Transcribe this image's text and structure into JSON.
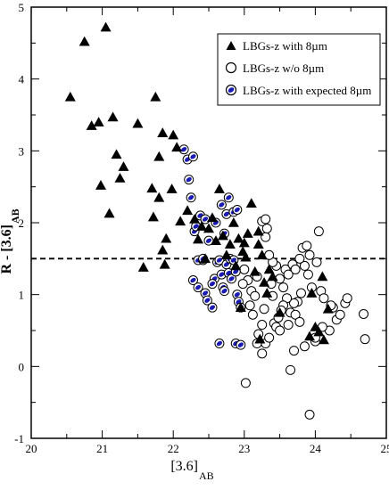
{
  "chart_data": {
    "type": "scatter",
    "xlabel": "[3.6]",
    "xlabel_sub": "AB",
    "ylabel": "R - [3.6]",
    "ylabel_sub": "AB",
    "xlim": [
      20,
      25
    ],
    "ylim": [
      -1,
      5
    ],
    "xticks": [
      "20",
      "21",
      "22",
      "23",
      "24",
      "25"
    ],
    "yticks": [
      "-1",
      "0",
      "1",
      "2",
      "3",
      "4",
      "5"
    ],
    "grid": false,
    "legend_position": "top-right",
    "reference_line": {
      "y": 1.5,
      "style": "dashed"
    },
    "series": [
      {
        "name": "LBGs-z with 8µm",
        "marker": "filled-triangle",
        "color": "#000000",
        "points": [
          [
            20.55,
            3.75
          ],
          [
            20.75,
            4.52
          ],
          [
            21.05,
            4.72
          ],
          [
            20.85,
            3.35
          ],
          [
            20.95,
            3.4
          ],
          [
            21.15,
            3.47
          ],
          [
            20.98,
            2.52
          ],
          [
            21.1,
            2.13
          ],
          [
            21.2,
            2.95
          ],
          [
            21.25,
            2.62
          ],
          [
            21.3,
            2.78
          ],
          [
            21.5,
            3.38
          ],
          [
            21.58,
            1.38
          ],
          [
            21.7,
            2.48
          ],
          [
            21.72,
            2.08
          ],
          [
            21.75,
            3.75
          ],
          [
            21.8,
            2.92
          ],
          [
            21.85,
            1.62
          ],
          [
            21.88,
            1.42
          ],
          [
            21.9,
            1.78
          ],
          [
            21.85,
            3.25
          ],
          [
            21.8,
            2.35
          ],
          [
            22.0,
            3.22
          ],
          [
            22.05,
            3.05
          ],
          [
            21.98,
            2.47
          ],
          [
            22.1,
            2.02
          ],
          [
            22.2,
            2.17
          ],
          [
            22.3,
            2.05
          ],
          [
            22.35,
            1.77
          ],
          [
            22.4,
            1.95
          ],
          [
            22.5,
            1.92
          ],
          [
            22.55,
            2.07
          ],
          [
            22.6,
            1.75
          ],
          [
            22.65,
            2.47
          ],
          [
            22.7,
            1.82
          ],
          [
            22.75,
            1.55
          ],
          [
            22.8,
            1.7
          ],
          [
            22.85,
            2.0
          ],
          [
            22.88,
            1.4
          ],
          [
            22.92,
            1.78
          ],
          [
            22.98,
            1.6
          ],
          [
            23.02,
            1.52
          ],
          [
            23.05,
            1.85
          ],
          [
            23.1,
            2.27
          ],
          [
            23.15,
            1.32
          ],
          [
            23.2,
            1.88
          ],
          [
            23.25,
            1.55
          ],
          [
            23.28,
            1.17
          ],
          [
            23.32,
            1.02
          ],
          [
            23.35,
            1.35
          ],
          [
            23.4,
            1.25
          ],
          [
            23.22,
            0.38
          ],
          [
            22.95,
            0.82
          ],
          [
            23.0,
            1.72
          ],
          [
            23.5,
            0.75
          ],
          [
            23.92,
            0.42
          ],
          [
            24.0,
            0.55
          ],
          [
            24.05,
            0.48
          ],
          [
            24.12,
            0.37
          ],
          [
            24.18,
            0.8
          ],
          [
            23.95,
            1.02
          ],
          [
            24.1,
            1.25
          ],
          [
            23.2,
            1.7
          ],
          [
            22.45,
            1.5
          ]
        ]
      },
      {
        "name": "LBGs-z w/o 8µm",
        "marker": "open-circle",
        "color": "#000000",
        "points": [
          [
            23.02,
            -0.23
          ],
          [
            23.92,
            -0.67
          ],
          [
            23.65,
            -0.05
          ],
          [
            23.7,
            0.22
          ],
          [
            23.85,
            0.28
          ],
          [
            24.0,
            0.35
          ],
          [
            24.2,
            0.5
          ],
          [
            24.3,
            0.65
          ],
          [
            24.35,
            0.72
          ],
          [
            24.42,
            0.88
          ],
          [
            24.7,
            0.38
          ],
          [
            24.68,
            0.73
          ],
          [
            24.45,
            0.95
          ],
          [
            24.25,
            0.82
          ],
          [
            24.22,
            0.85
          ],
          [
            24.1,
            0.55
          ],
          [
            24.0,
            0.4
          ],
          [
            23.95,
            1.1
          ],
          [
            23.9,
            1.28
          ],
          [
            23.85,
            1.4
          ],
          [
            23.8,
            1.02
          ],
          [
            23.75,
            0.9
          ],
          [
            23.7,
            0.88
          ],
          [
            23.65,
            0.75
          ],
          [
            23.6,
            0.95
          ],
          [
            23.55,
            1.1
          ],
          [
            23.5,
            1.22
          ],
          [
            23.45,
            1.4
          ],
          [
            23.4,
            1.45
          ],
          [
            23.35,
            1.55
          ],
          [
            23.3,
            1.8
          ],
          [
            23.25,
            2.02
          ],
          [
            23.3,
            2.05
          ],
          [
            23.32,
            1.92
          ],
          [
            23.38,
            1.15
          ],
          [
            23.42,
            0.6
          ],
          [
            23.45,
            0.55
          ],
          [
            23.5,
            0.5
          ],
          [
            23.55,
            0.85
          ],
          [
            23.58,
            1.35
          ],
          [
            23.62,
            1.28
          ],
          [
            23.68,
            1.42
          ],
          [
            23.72,
            1.35
          ],
          [
            23.78,
            1.5
          ],
          [
            23.82,
            1.65
          ],
          [
            23.88,
            1.68
          ],
          [
            23.92,
            1.55
          ],
          [
            24.02,
            1.45
          ],
          [
            24.08,
            1.05
          ],
          [
            24.12,
            0.95
          ],
          [
            24.05,
            1.88
          ],
          [
            23.1,
            1.05
          ],
          [
            23.15,
            0.98
          ],
          [
            23.18,
            1.25
          ],
          [
            23.05,
            1.2
          ],
          [
            23.0,
            1.35
          ],
          [
            22.98,
            1.15
          ],
          [
            23.08,
            0.85
          ],
          [
            23.12,
            0.72
          ],
          [
            23.25,
            0.58
          ],
          [
            23.2,
            0.45
          ],
          [
            23.3,
            0.32
          ],
          [
            23.35,
            0.4
          ],
          [
            23.28,
            0.8
          ],
          [
            23.4,
            0.98
          ],
          [
            23.48,
            0.68
          ],
          [
            23.52,
            0.78
          ],
          [
            23.62,
            0.58
          ],
          [
            23.72,
            0.72
          ],
          [
            23.78,
            0.62
          ],
          [
            23.18,
            0.32
          ],
          [
            23.25,
            0.18
          ]
        ]
      },
      {
        "name": "LBGs-z with expected 8µm",
        "marker": "open-circle-blue-dot",
        "color": "#1a1ab4",
        "points": [
          [
            22.15,
            3.02
          ],
          [
            22.2,
            2.88
          ],
          [
            22.22,
            2.6
          ],
          [
            22.25,
            2.35
          ],
          [
            22.28,
            2.92
          ],
          [
            22.3,
            1.88
          ],
          [
            22.32,
            1.95
          ],
          [
            22.35,
            1.48
          ],
          [
            22.38,
            2.1
          ],
          [
            22.42,
            1.48
          ],
          [
            22.45,
            2.05
          ],
          [
            22.28,
            1.2
          ],
          [
            22.35,
            1.1
          ],
          [
            22.45,
            1.02
          ],
          [
            22.48,
            0.92
          ],
          [
            22.55,
            0.82
          ],
          [
            22.58,
            1.22
          ],
          [
            22.62,
            1.45
          ],
          [
            22.65,
            1.48
          ],
          [
            22.68,
            1.28
          ],
          [
            22.7,
            1.1
          ],
          [
            22.72,
            1.05
          ],
          [
            22.75,
            1.42
          ],
          [
            22.78,
            1.3
          ],
          [
            22.8,
            1.5
          ],
          [
            22.82,
            1.22
          ],
          [
            22.85,
            1.48
          ],
          [
            22.88,
            1.32
          ],
          [
            22.9,
            1.0
          ],
          [
            22.92,
            0.9
          ],
          [
            22.95,
            0.82
          ],
          [
            22.72,
            1.85
          ],
          [
            22.75,
            2.12
          ],
          [
            22.78,
            2.35
          ],
          [
            22.85,
            2.15
          ],
          [
            22.9,
            2.18
          ],
          [
            22.68,
            2.25
          ],
          [
            22.6,
            2.0
          ],
          [
            22.5,
            1.75
          ],
          [
            22.42,
            1.5
          ],
          [
            22.88,
            0.32
          ],
          [
            22.95,
            0.3
          ],
          [
            22.65,
            0.32
          ],
          [
            22.55,
            1.15
          ]
        ]
      }
    ]
  }
}
